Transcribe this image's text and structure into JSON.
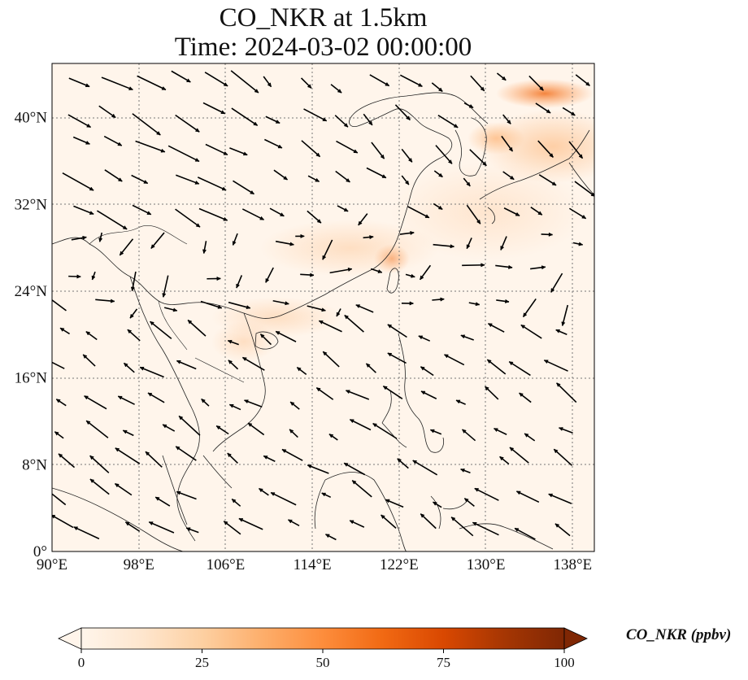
{
  "title": {
    "line1": "CO_NKR at 1.5km",
    "line2": "Time: 2024-03-02 00:00:00"
  },
  "map": {
    "lon_range": [
      90,
      140
    ],
    "lat_range": [
      0,
      45
    ],
    "lon_ticks": [
      {
        "value": 90,
        "label": "90°E"
      },
      {
        "value": 98,
        "label": "98°E"
      },
      {
        "value": 106,
        "label": "106°E"
      },
      {
        "value": 114,
        "label": "114°E"
      },
      {
        "value": 122,
        "label": "122°E"
      },
      {
        "value": 130,
        "label": "130°E"
      },
      {
        "value": 138,
        "label": "138°E"
      }
    ],
    "lat_ticks": [
      {
        "value": 0,
        "label": "0°"
      },
      {
        "value": 8,
        "label": "8°N"
      },
      {
        "value": 16,
        "label": "16°N"
      },
      {
        "value": 24,
        "label": "24°N"
      },
      {
        "value": 32,
        "label": "32°N"
      },
      {
        "value": 40,
        "label": "40°N"
      }
    ],
    "gridlines": true,
    "background_color": "#fff5eb",
    "coast_color": "#222222"
  },
  "colorbar": {
    "label": "CO_NKR (ppbv)",
    "min": 0,
    "max": 100,
    "ticks": [
      {
        "value": 0,
        "label": "0"
      },
      {
        "value": 25,
        "label": "25"
      },
      {
        "value": 50,
        "label": "50"
      },
      {
        "value": 75,
        "label": "75"
      },
      {
        "value": 100,
        "label": "100"
      }
    ],
    "colors": [
      "#fff5eb",
      "#fee6ce",
      "#fdd0a2",
      "#fdae6b",
      "#fd8d3c",
      "#f16913",
      "#d94801",
      "#a63603",
      "#7f2704"
    ],
    "extend": "both"
  }
}
